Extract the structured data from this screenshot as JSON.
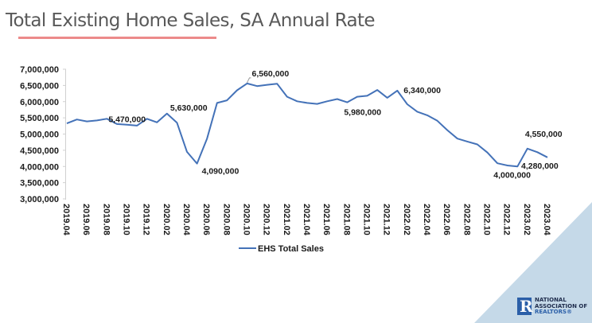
{
  "page_title": "Total Existing Home Sales, SA Annual Rate",
  "accent_color": "#ec8a8a",
  "line_color": "#4472b8",
  "logo": {
    "line1": "NATIONAL",
    "line2": "ASSOCIATION OF",
    "line3": "REALTORS®",
    "mark": "R"
  },
  "chart_data": {
    "type": "line",
    "title": "Total Existing Home Sales, SA Annual Rate",
    "xlabel": "",
    "ylabel": "",
    "ylim": [
      3000000,
      7000000
    ],
    "grid": false,
    "legend": "bottom",
    "y_ticks": [
      3000000,
      3500000,
      4000000,
      4500000,
      5000000,
      5500000,
      6000000,
      6500000,
      7000000
    ],
    "y_tick_labels": [
      "3,000,000",
      "3,500,000",
      "4,000,000",
      "4,500,000",
      "5,000,000",
      "5,500,000",
      "6,000,000",
      "6,500,000",
      "7,000,000"
    ],
    "x_tick_labels": [
      "2019.04",
      "2019.06",
      "2019.08",
      "2019.10",
      "2019.12",
      "2020.02",
      "2020.04",
      "2020.06",
      "2020.08",
      "2020.10",
      "2020.12",
      "2021.02",
      "2021.04",
      "2021.06",
      "2021.08",
      "2021.10",
      "2021.12",
      "2022.02",
      "2022.04",
      "2022.06",
      "2022.08",
      "2022.10",
      "2022.12",
      "2023.02",
      "2023.04"
    ],
    "x": [
      "2019.04",
      "2019.05",
      "2019.06",
      "2019.07",
      "2019.08",
      "2019.09",
      "2019.10",
      "2019.11",
      "2019.12",
      "2020.01",
      "2020.02",
      "2020.03",
      "2020.04",
      "2020.05",
      "2020.06",
      "2020.07",
      "2020.08",
      "2020.09",
      "2020.10",
      "2020.11",
      "2020.12",
      "2021.01",
      "2021.02",
      "2021.03",
      "2021.04",
      "2021.05",
      "2021.06",
      "2021.07",
      "2021.08",
      "2021.09",
      "2021.10",
      "2021.11",
      "2021.12",
      "2022.01",
      "2022.02",
      "2022.03",
      "2022.04",
      "2022.05",
      "2022.06",
      "2022.07",
      "2022.08",
      "2022.09",
      "2022.10",
      "2022.11",
      "2022.12",
      "2023.01",
      "2023.02",
      "2023.03",
      "2023.04"
    ],
    "series": [
      {
        "name": "EHS Total Sales",
        "values": [
          5330000,
          5450000,
          5390000,
          5420000,
          5470000,
          5310000,
          5290000,
          5260000,
          5470000,
          5360000,
          5630000,
          5350000,
          4450000,
          4090000,
          4860000,
          5960000,
          6040000,
          6350000,
          6560000,
          6480000,
          6520000,
          6550000,
          6150000,
          6010000,
          5960000,
          5930000,
          6010000,
          6080000,
          5980000,
          6150000,
          6180000,
          6360000,
          6120000,
          6340000,
          5920000,
          5690000,
          5580000,
          5410000,
          5120000,
          4860000,
          4770000,
          4680000,
          4430000,
          4100000,
          4030000,
          4000000,
          4550000,
          4440000,
          4280000
        ]
      }
    ],
    "annotations": [
      {
        "x": "2019.08",
        "value": 5470000,
        "label": "5,470,000"
      },
      {
        "x": "2020.02",
        "value": 5630000,
        "label": "5,630,000"
      },
      {
        "x": "2020.05",
        "value": 4090000,
        "label": "4,090,000"
      },
      {
        "x": "2020.10",
        "value": 6560000,
        "label": "6,560,000"
      },
      {
        "x": "2021.08",
        "value": 5980000,
        "label": "5,980,000"
      },
      {
        "x": "2022.01",
        "value": 6340000,
        "label": "6,340,000"
      },
      {
        "x": "2023.01",
        "value": 4000000,
        "label": "4,000,000"
      },
      {
        "x": "2023.02",
        "value": 4550000,
        "label": "4,550,000"
      },
      {
        "x": "2023.04",
        "value": 4280000,
        "label": "4,280,000"
      }
    ]
  }
}
